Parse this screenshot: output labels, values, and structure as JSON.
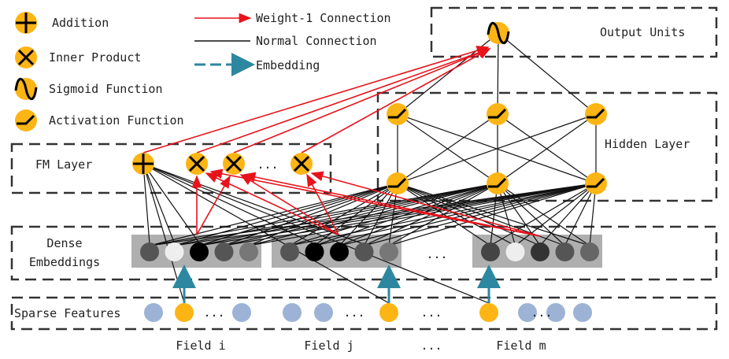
{
  "legend": {
    "addition": "Addition",
    "inner_product": "Inner Product",
    "sigmoid": "Sigmoid Function",
    "activation": "Activation Function",
    "weight1": "Weight-1 Connection",
    "normal": "Normal Connection",
    "embedding": "Embedding"
  },
  "layers": {
    "output": "Output Units",
    "hidden": "Hidden Layer",
    "fm": "FM Layer",
    "dense_line1": "Dense",
    "dense_line2": "Embeddings",
    "sparse": "Sparse Features"
  },
  "fields": [
    "Field i",
    "Field j",
    "...",
    "Field m"
  ],
  "ellipsis": "...",
  "colors": {
    "node": "#FDB515",
    "sparse_node": "#9DB3D6",
    "weight1": "#E8121B",
    "embedding": "#2E87A0",
    "group_bg": "#AFAFAF"
  },
  "dense_groups": [
    [
      "#555555",
      "#EEEEEE",
      "#000000",
      "#555555",
      "#777777"
    ],
    [
      "#555555",
      "#000000",
      "#000000",
      "#555555",
      "#777777"
    ],
    [
      "#444444",
      "#EEEEEE",
      "#333333",
      "#555555",
      "#666666"
    ]
  ]
}
